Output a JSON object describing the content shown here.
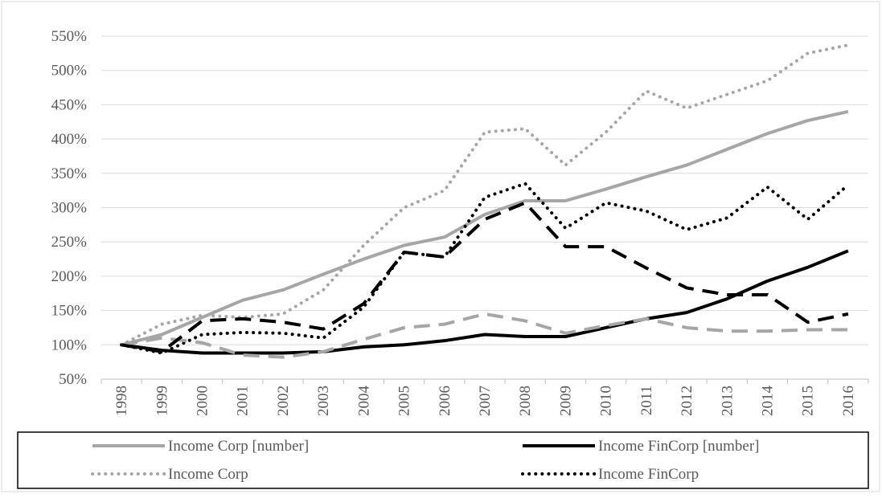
{
  "chart_data": {
    "type": "line",
    "categories": [
      "1998",
      "1999",
      "2000",
      "2001",
      "2002",
      "2003",
      "2004",
      "2005",
      "2006",
      "2007",
      "2008",
      "2009",
      "2010",
      "2011",
      "2012",
      "2013",
      "2014",
      "2015",
      "2016"
    ],
    "ylim": [
      50,
      550
    ],
    "yticks": [
      {
        "value": 50,
        "label": "50%"
      },
      {
        "value": 100,
        "label": "100%"
      },
      {
        "value": 150,
        "label": "150%"
      },
      {
        "value": 200,
        "label": "200%"
      },
      {
        "value": 250,
        "label": "250%"
      },
      {
        "value": 300,
        "label": "300%"
      },
      {
        "value": 350,
        "label": "350%"
      },
      {
        "value": 400,
        "label": "400%"
      },
      {
        "value": 450,
        "label": "450%"
      },
      {
        "value": 500,
        "label": "500%"
      },
      {
        "value": 550,
        "label": "550%"
      }
    ],
    "grid": true,
    "series": [
      {
        "name": "Income Corp [number]",
        "color": "#a6a6a6",
        "style": "solid",
        "values": [
          100,
          115,
          140,
          165,
          180,
          203,
          225,
          245,
          257,
          290,
          310,
          310,
          327,
          345,
          362,
          385,
          408,
          427,
          440
        ]
      },
      {
        "name": "Income FinCorp [number]",
        "color": "#000000",
        "style": "solid",
        "values": [
          100,
          92,
          88,
          88,
          88,
          90,
          97,
          100,
          106,
          115,
          112,
          112,
          125,
          138,
          147,
          167,
          193,
          213,
          237
        ]
      },
      {
        "name": "Income Corp",
        "color": "#a6a6a6",
        "style": "dotted",
        "values": [
          100,
          130,
          143,
          140,
          145,
          180,
          245,
          300,
          325,
          410,
          415,
          362,
          410,
          470,
          445,
          465,
          485,
          525,
          537
        ]
      },
      {
        "name": "Income FinCorp",
        "color": "#000000",
        "style": "dotted",
        "values": [
          100,
          88,
          115,
          118,
          117,
          110,
          155,
          235,
          228,
          315,
          335,
          270,
          307,
          295,
          268,
          285,
          330,
          283,
          333
        ]
      },
      {
        "color": "#a6a6a6",
        "style": "dashed",
        "values": [
          100,
          110,
          103,
          85,
          82,
          90,
          108,
          125,
          130,
          145,
          135,
          117,
          128,
          138,
          125,
          120,
          120,
          122,
          122
        ]
      },
      {
        "color": "#000000",
        "style": "dashed",
        "values": [
          100,
          90,
          135,
          138,
          133,
          123,
          160,
          235,
          228,
          283,
          307,
          243,
          243,
          212,
          183,
          173,
          173,
          133,
          145
        ]
      }
    ]
  }
}
